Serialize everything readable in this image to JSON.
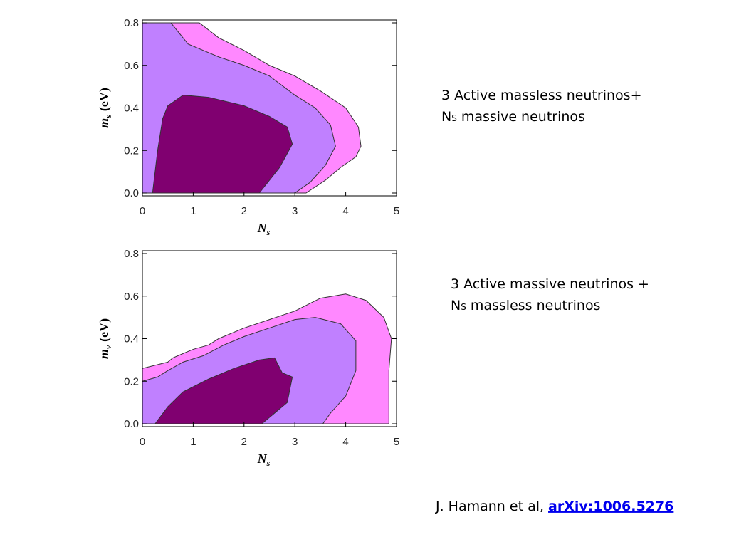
{
  "chart_data": [
    {
      "type": "contour",
      "x_label": "N",
      "x_label_sub": "s",
      "y_label": "m",
      "y_label_sub": "s",
      "y_label_unit": "(eV)",
      "xlim": [
        0,
        5
      ],
      "ylim": [
        0,
        0.8
      ],
      "xticks": [
        0,
        1,
        2,
        3,
        4,
        5
      ],
      "yticks": [
        {
          "value": 0,
          "label": "0.0"
        },
        {
          "value": 0.2,
          "label": "0.2"
        },
        {
          "value": 0.4,
          "label": "0.4"
        },
        {
          "value": 0.6,
          "label": "0.6"
        },
        {
          "value": 0.8,
          "label": "0.8"
        }
      ],
      "series": [
        {
          "color": "#ff88ff",
          "x": [
            0,
            0,
            1.12,
            1.5,
            2.0,
            2.5,
            3.0,
            3.5,
            4.0,
            4.25,
            4.3,
            4.2,
            3.9,
            3.6,
            3.22
          ],
          "y": [
            0,
            0.8,
            0.8,
            0.73,
            0.67,
            0.6,
            0.55,
            0.48,
            0.4,
            0.31,
            0.22,
            0.17,
            0.12,
            0.06,
            0
          ]
        },
        {
          "color": "#c080ff",
          "x": [
            0,
            0,
            0.56,
            0.9,
            1.5,
            2.0,
            2.5,
            3.0,
            3.4,
            3.7,
            3.8,
            3.6,
            3.3,
            3.0
          ],
          "y": [
            0,
            0.8,
            0.8,
            0.7,
            0.64,
            0.6,
            0.55,
            0.46,
            0.4,
            0.32,
            0.22,
            0.13,
            0.05,
            0
          ]
        },
        {
          "color": "#800070",
          "x": [
            0.2,
            0.3,
            0.4,
            0.5,
            0.8,
            1.3,
            2.0,
            2.5,
            2.85,
            2.95,
            2.7,
            2.3
          ],
          "y": [
            0,
            0.2,
            0.35,
            0.41,
            0.46,
            0.45,
            0.41,
            0.36,
            0.31,
            0.23,
            0.12,
            0
          ]
        }
      ]
    },
    {
      "type": "contour",
      "x_label": "N",
      "x_label_sub": "s",
      "y_label": "m",
      "y_label_sub": "ν",
      "y_label_unit": "(eV)",
      "xlim": [
        0,
        5
      ],
      "ylim": [
        0,
        0.8
      ],
      "xticks": [
        0,
        1,
        2,
        3,
        4,
        5
      ],
      "yticks": [
        {
          "value": 0,
          "label": "0.0"
        },
        {
          "value": 0.2,
          "label": "0.2"
        },
        {
          "value": 0.4,
          "label": "0.4"
        },
        {
          "value": 0.6,
          "label": "0.6"
        },
        {
          "value": 0.8,
          "label": "0.8"
        }
      ],
      "series": [
        {
          "color": "#ff88ff",
          "x": [
            0,
            0,
            0.5,
            0.6,
            1.0,
            1.3,
            1.5,
            2.0,
            2.5,
            3.0,
            3.5,
            4.0,
            4.4,
            4.75,
            4.9,
            4.85,
            4.85
          ],
          "y": [
            0,
            0.26,
            0.29,
            0.31,
            0.35,
            0.37,
            0.4,
            0.45,
            0.49,
            0.53,
            0.59,
            0.61,
            0.58,
            0.5,
            0.4,
            0.25,
            0
          ]
        },
        {
          "color": "#c080ff",
          "x": [
            0,
            0,
            0.3,
            0.5,
            0.8,
            1.2,
            1.6,
            2.0,
            2.5,
            3.0,
            3.4,
            3.9,
            4.2,
            4.2,
            4.0,
            3.7,
            3.55
          ],
          "y": [
            0,
            0.2,
            0.22,
            0.25,
            0.29,
            0.32,
            0.37,
            0.41,
            0.45,
            0.49,
            0.5,
            0.47,
            0.39,
            0.25,
            0.13,
            0.05,
            0
          ]
        },
        {
          "color": "#800070",
          "x": [
            0.25,
            0.5,
            0.8,
            1.3,
            1.8,
            2.3,
            2.6,
            2.75,
            2.95,
            2.85,
            2.6,
            2.35
          ],
          "y": [
            0,
            0.08,
            0.15,
            0.21,
            0.26,
            0.3,
            0.31,
            0.24,
            0.22,
            0.1,
            0.05,
            0
          ]
        }
      ]
    }
  ],
  "notes": [
    {
      "line1": "3 Active massless neutrinos+",
      "n": "N",
      "n_sub": "S",
      "rest": "massive neutrinos"
    },
    {
      "line1": "3 Active massive neutrinos +",
      "n": "N",
      "n_sub": "S",
      "rest": "massless neutrinos"
    }
  ],
  "citation": {
    "text": "J. Hamann et al,",
    "link": "arXiv:1006.5276"
  }
}
